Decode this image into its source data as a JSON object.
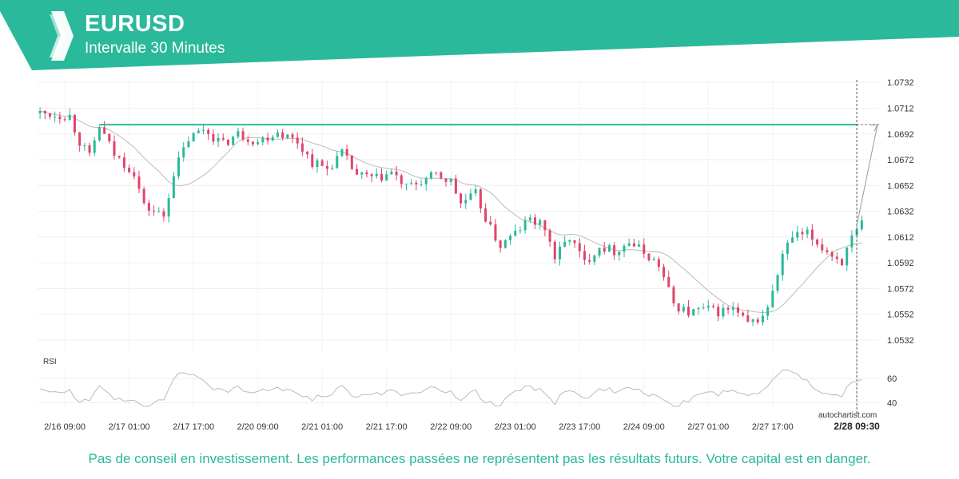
{
  "header": {
    "symbol": "EURUSD",
    "interval": "Intervalle 30 Minutes",
    "banner_color": "#2ab99a"
  },
  "footer": {
    "disclaimer": "Pas de conseil en investissement. Les performances passées ne représentent pas les résultats futurs. Votre capital est en danger.",
    "brand": "autochartist.com"
  },
  "chart_data": {
    "type": "candlestick",
    "price_axis": {
      "ticks": [
        "1.0732",
        "1.0712",
        "1.0692",
        "1.0672",
        "1.0652",
        "1.0632",
        "1.0612",
        "1.0592",
        "1.0572",
        "1.0552",
        "1.0532"
      ],
      "range": [
        1.0522,
        1.0734
      ]
    },
    "time_axis": {
      "ticks": [
        "2/16 09:00",
        "2/17 01:00",
        "2/17 17:00",
        "2/20 09:00",
        "2/21 01:00",
        "2/21 17:00",
        "2/22 09:00",
        "2/23 01:00",
        "2/23 17:00",
        "2/24 09:00",
        "2/27 01:00",
        "2/27 17:00"
      ],
      "current": "2/28 09:30"
    },
    "resistance_level": 1.06992,
    "projection": {
      "from": 1.0621,
      "to": 1.06992
    },
    "price_path": [
      [
        0,
        1.0708
      ],
      [
        6,
        1.0706
      ],
      [
        8,
        1.0686
      ],
      [
        10,
        1.0674
      ],
      [
        12,
        1.0698
      ],
      [
        15,
        1.0676
      ],
      [
        19,
        1.0662
      ],
      [
        21,
        1.0636
      ],
      [
        25,
        1.0628
      ],
      [
        27,
        1.0662
      ],
      [
        30,
        1.0688
      ],
      [
        33,
        1.0696
      ],
      [
        37,
        1.0684
      ],
      [
        40,
        1.0692
      ],
      [
        44,
        1.0686
      ],
      [
        48,
        1.0694
      ],
      [
        52,
        1.0686
      ],
      [
        55,
        1.067
      ],
      [
        58,
        1.0665
      ],
      [
        61,
        1.0677
      ],
      [
        64,
        1.066
      ],
      [
        68,
        1.0657
      ],
      [
        71,
        1.0662
      ],
      [
        74,
        1.065
      ],
      [
        77,
        1.0655
      ],
      [
        80,
        1.066
      ],
      [
        83,
        1.0655
      ],
      [
        85,
        1.0638
      ],
      [
        88,
        1.0645
      ],
      [
        91,
        1.0618
      ],
      [
        93,
        1.0605
      ],
      [
        96,
        1.0615
      ],
      [
        99,
        1.0626
      ],
      [
        102,
        1.0619
      ],
      [
        104,
        1.0596
      ],
      [
        107,
        1.0612
      ],
      [
        110,
        1.0592
      ],
      [
        113,
        1.0605
      ],
      [
        116,
        1.0601
      ],
      [
        119,
        1.0608
      ],
      [
        122,
        1.06
      ],
      [
        125,
        1.059
      ],
      [
        128,
        1.056
      ],
      [
        131,
        1.0553
      ],
      [
        134,
        1.0556
      ],
      [
        137,
        1.0554
      ],
      [
        140,
        1.0556
      ],
      [
        143,
        1.0544
      ],
      [
        146,
        1.055
      ],
      [
        148,
        1.0568
      ],
      [
        150,
        1.0598
      ],
      [
        152,
        1.0612
      ],
      [
        155,
        1.0614
      ],
      [
        158,
        1.0604
      ],
      [
        160,
        1.0598
      ],
      [
        162,
        1.0593
      ],
      [
        164,
        1.061
      ],
      [
        166,
        1.0621
      ]
    ],
    "indicators": [
      {
        "name": "RSI",
        "ticks": [
          "60",
          "40"
        ],
        "range": [
          35,
          68
        ]
      }
    ],
    "colors": {
      "up": "#2ab99a",
      "down": "#e0446a",
      "resistance": "#2ab99a",
      "ma": "#bbbbbb"
    }
  }
}
